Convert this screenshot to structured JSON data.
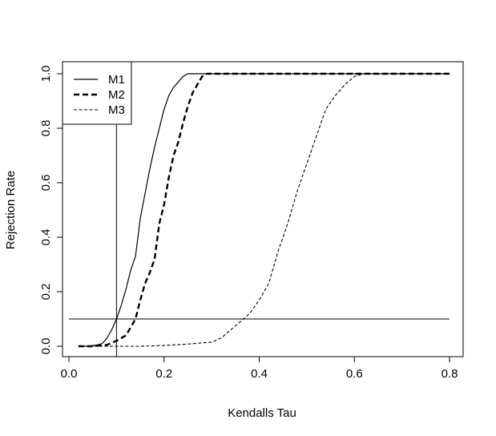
{
  "chart_data": {
    "type": "line",
    "xlabel": "Kendalls Tau",
    "ylabel": "Rejection Rate",
    "xlim": [
      0.0,
      0.8
    ],
    "ylim": [
      0.0,
      1.0
    ],
    "x_ticks": [
      "0.0",
      "0.2",
      "0.4",
      "0.6",
      "0.8"
    ],
    "y_ticks": [
      "0.0",
      "0.2",
      "0.4",
      "0.6",
      "0.8",
      "1.0"
    ],
    "grid": false,
    "legend_position": "top-left",
    "reference_lines": [
      {
        "orientation": "horizontal",
        "value": 0.1,
        "from": 0.0,
        "to": 0.8
      },
      {
        "orientation": "vertical",
        "value": 0.1
      }
    ],
    "series": [
      {
        "name": "M1",
        "style": "solid",
        "x": [
          0.02,
          0.04,
          0.06,
          0.07,
          0.08,
          0.09,
          0.1,
          0.11,
          0.12,
          0.13,
          0.14,
          0.15,
          0.16,
          0.17,
          0.18,
          0.19,
          0.2,
          0.21,
          0.22,
          0.23,
          0.24,
          0.25,
          0.26,
          0.3,
          0.4,
          0.5,
          0.6,
          0.7,
          0.8
        ],
        "y": [
          0.0,
          0.0,
          0.005,
          0.01,
          0.03,
          0.06,
          0.1,
          0.15,
          0.21,
          0.28,
          0.33,
          0.47,
          0.56,
          0.65,
          0.73,
          0.8,
          0.87,
          0.92,
          0.95,
          0.97,
          0.99,
          1.0,
          1.0,
          1.0,
          1.0,
          1.0,
          1.0,
          1.0,
          1.0
        ]
      },
      {
        "name": "M2",
        "style": "thick-dashed",
        "x": [
          0.02,
          0.05,
          0.08,
          0.1,
          0.11,
          0.12,
          0.13,
          0.14,
          0.15,
          0.16,
          0.17,
          0.18,
          0.19,
          0.2,
          0.21,
          0.22,
          0.23,
          0.24,
          0.25,
          0.26,
          0.27,
          0.28,
          0.29,
          0.3,
          0.4,
          0.5,
          0.6,
          0.7,
          0.8
        ],
        "y": [
          0.0,
          0.0,
          0.005,
          0.02,
          0.03,
          0.04,
          0.07,
          0.1,
          0.17,
          0.23,
          0.27,
          0.32,
          0.45,
          0.52,
          0.62,
          0.7,
          0.75,
          0.82,
          0.88,
          0.93,
          0.96,
          0.99,
          1.0,
          1.0,
          1.0,
          1.0,
          1.0,
          1.0,
          1.0
        ]
      },
      {
        "name": "M3",
        "style": "dashed",
        "x": [
          0.02,
          0.1,
          0.15,
          0.2,
          0.25,
          0.3,
          0.32,
          0.34,
          0.36,
          0.38,
          0.4,
          0.42,
          0.44,
          0.46,
          0.48,
          0.5,
          0.52,
          0.54,
          0.56,
          0.58,
          0.6,
          0.62,
          0.64,
          0.7,
          0.8
        ],
        "y": [
          0.0,
          0.0,
          0.0,
          0.003,
          0.008,
          0.015,
          0.03,
          0.06,
          0.09,
          0.12,
          0.17,
          0.23,
          0.35,
          0.45,
          0.57,
          0.67,
          0.77,
          0.87,
          0.92,
          0.96,
          0.99,
          1.0,
          1.0,
          1.0,
          1.0
        ]
      }
    ]
  }
}
